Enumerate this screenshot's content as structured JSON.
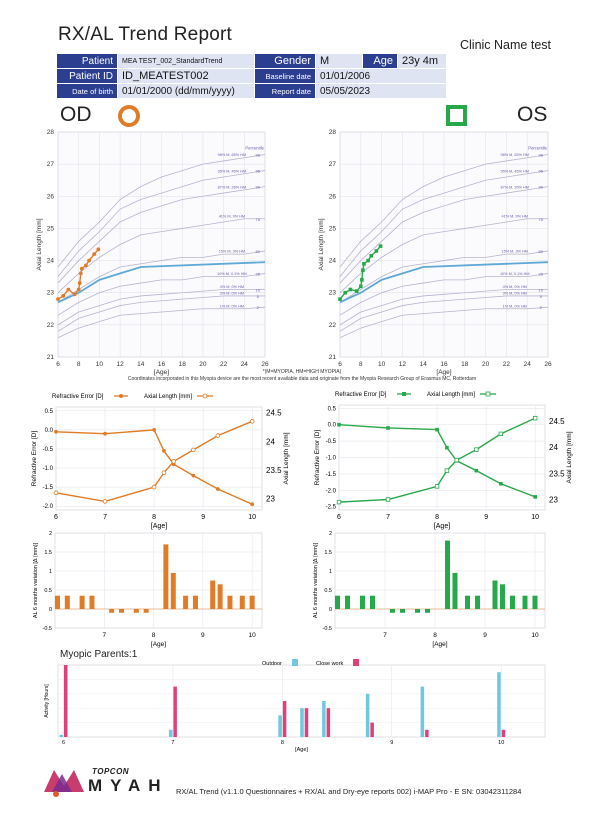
{
  "report": {
    "title": "RX/AL Trend Report",
    "clinic_name": "Clinic Name test",
    "patient_label": "Patient",
    "patient_value": "MEA TEST_002_StandardTrend",
    "gender_label": "Gender",
    "gender_value": "M",
    "age_label": "Age",
    "age_value": "23y 4m",
    "patient_id_label": "Patient ID",
    "patient_id_value": "ID_MEATEST002",
    "baseline_label": "Baseline date",
    "baseline_value": "01/01/2006",
    "dob_label": "Date of birth",
    "dob_value": "01/01/2000 (dd/mm/yyyy)",
    "report_date_label": "Report date",
    "report_date_value": "05/05/2023",
    "od_label": "OD",
    "os_label": "OS",
    "colors": {
      "od": "#e07b27",
      "os": "#27a84a",
      "header": "#2b3e8f",
      "outdoor": "#6fc8dc",
      "closework": "#e0407a"
    }
  },
  "notes": {
    "line1": "*(M=MYOPIA, HM=HIGH MYOPIA)",
    "line2": "Coordinates incorporated in this Myopia device are the most recent available data and originate from the Myopia Research Group of Erasmus MC, Rotterdam"
  },
  "chart_data": [
    {
      "id": "od_growth",
      "type": "line",
      "xlabel": "[Age]",
      "ylabel": "Axial Length [mm]",
      "xlim": [
        6,
        26
      ],
      "ylim": [
        21,
        28
      ],
      "xticks": [
        "6",
        "8",
        "10",
        "12",
        "14",
        "16",
        "18",
        "20",
        "22",
        "24",
        "26"
      ],
      "yticks": [
        "21",
        "22",
        "23",
        "24",
        "25",
        "26",
        "27",
        "28"
      ],
      "percentile_header": "Percentile",
      "percentiles": [
        {
          "label": "98",
          "tag": "98% M, 65% HM",
          "y": [
            23.8,
            24.6,
            25.2,
            25.9,
            26.3,
            26.6,
            26.8,
            27.0,
            27.1,
            27.2,
            27.3
          ]
        },
        {
          "label": "95",
          "tag": "95% M, 45% HM",
          "y": [
            23.5,
            24.3,
            24.9,
            25.6,
            25.9,
            26.1,
            26.3,
            26.5,
            26.6,
            26.7,
            26.8
          ]
        },
        {
          "label": "90",
          "tag": "87% M, 26% HM",
          "y": [
            23.3,
            24.0,
            24.6,
            25.2,
            25.5,
            25.7,
            25.9,
            26.0,
            26.1,
            26.2,
            26.3
          ]
        },
        {
          "label": "75",
          "tag": "41% M, 9% HM",
          "y": [
            23.0,
            23.6,
            24.1,
            24.5,
            24.8,
            24.9,
            25.0,
            25.1,
            25.2,
            25.3,
            25.3
          ]
        },
        {
          "label": "50",
          "tag": "15% M, 3% HM",
          "y": [
            22.7,
            23.1,
            23.5,
            23.8,
            23.9,
            24.0,
            24.1,
            24.1,
            24.2,
            24.2,
            24.3
          ]
        },
        {
          "label": "25",
          "tag": "10% M, 0.1% HM",
          "y": [
            22.3,
            22.7,
            23.0,
            23.2,
            23.3,
            23.4,
            23.4,
            23.5,
            23.5,
            23.5,
            23.6
          ]
        },
        {
          "label": "10",
          "tag": "4% M, 0% HM",
          "y": [
            22.0,
            22.4,
            22.6,
            22.8,
            22.9,
            22.95,
            23.0,
            23.05,
            23.1,
            23.1,
            23.1
          ]
        },
        {
          "label": "5",
          "tag": "3% M, 0% HM",
          "y": [
            21.8,
            22.2,
            22.4,
            22.6,
            22.7,
            22.75,
            22.8,
            22.85,
            22.9,
            22.9,
            22.9
          ]
        },
        {
          "label": "2",
          "tag": "1% M, 0% HM",
          "y": [
            21.6,
            21.9,
            22.1,
            22.3,
            22.35,
            22.4,
            22.45,
            22.5,
            22.5,
            22.5,
            22.55
          ]
        }
      ],
      "reference": {
        "x": [
          6,
          8,
          10,
          14,
          26
        ],
        "y": [
          22.7,
          23.0,
          23.4,
          23.8,
          23.95
        ]
      },
      "patient": {
        "x": [
          6.0,
          6.5,
          7.0,
          7.6,
          8.0,
          8.1,
          8.2,
          8.3,
          8.7,
          9.0,
          9.5,
          9.9
        ],
        "y": [
          22.8,
          22.9,
          23.1,
          22.95,
          23.1,
          23.3,
          23.6,
          23.75,
          23.85,
          24.0,
          24.2,
          24.35
        ]
      }
    },
    {
      "id": "os_growth",
      "type": "line",
      "xlabel": "[Age]",
      "ylabel": "Axial Length [mm]",
      "xlim": [
        6,
        26
      ],
      "ylim": [
        21,
        28
      ],
      "xticks": [
        "6",
        "8",
        "10",
        "12",
        "14",
        "16",
        "18",
        "20",
        "22",
        "24",
        "26"
      ],
      "yticks": [
        "21",
        "22",
        "23",
        "24",
        "25",
        "26",
        "27",
        "28"
      ],
      "percentile_header": "Percentile",
      "percentiles": [
        {
          "label": "98",
          "tag": "98% M, 65% HM",
          "y": [
            23.8,
            24.6,
            25.2,
            25.9,
            26.3,
            26.6,
            26.8,
            27.0,
            27.1,
            27.2,
            27.3
          ]
        },
        {
          "label": "95",
          "tag": "95% M, 45% HM",
          "y": [
            23.5,
            24.3,
            24.9,
            25.6,
            25.9,
            26.1,
            26.3,
            26.5,
            26.6,
            26.7,
            26.8
          ]
        },
        {
          "label": "90",
          "tag": "87% M, 26% HM",
          "y": [
            23.3,
            24.0,
            24.6,
            25.2,
            25.5,
            25.7,
            25.9,
            26.0,
            26.1,
            26.2,
            26.3
          ]
        },
        {
          "label": "75",
          "tag": "41% M, 9% HM",
          "y": [
            23.0,
            23.6,
            24.1,
            24.5,
            24.8,
            24.9,
            25.0,
            25.1,
            25.2,
            25.3,
            25.3
          ]
        },
        {
          "label": "50",
          "tag": "15% M, 3% HM",
          "y": [
            22.7,
            23.1,
            23.5,
            23.8,
            23.9,
            24.0,
            24.1,
            24.1,
            24.2,
            24.2,
            24.3
          ]
        },
        {
          "label": "25",
          "tag": "10% M, 0.1% HM",
          "y": [
            22.3,
            22.7,
            23.0,
            23.2,
            23.3,
            23.4,
            23.4,
            23.5,
            23.5,
            23.5,
            23.6
          ]
        },
        {
          "label": "10",
          "tag": "4% M, 0% HM",
          "y": [
            22.0,
            22.4,
            22.6,
            22.8,
            22.9,
            22.95,
            23.0,
            23.05,
            23.1,
            23.1,
            23.1
          ]
        },
        {
          "label": "5",
          "tag": "3% M, 0% HM",
          "y": [
            21.8,
            22.2,
            22.4,
            22.6,
            22.7,
            22.75,
            22.8,
            22.85,
            22.9,
            22.9,
            22.9
          ]
        },
        {
          "label": "2",
          "tag": "1% M, 0% HM",
          "y": [
            21.6,
            21.9,
            22.1,
            22.3,
            22.35,
            22.4,
            22.45,
            22.5,
            22.5,
            22.5,
            22.55
          ]
        }
      ],
      "reference": {
        "x": [
          6,
          8,
          10,
          14,
          26
        ],
        "y": [
          22.7,
          23.0,
          23.4,
          23.8,
          23.95
        ]
      },
      "patient": {
        "x": [
          6.0,
          6.5,
          7.0,
          7.6,
          8.0,
          8.1,
          8.2,
          8.3,
          8.7,
          9.0,
          9.5,
          9.9
        ],
        "y": [
          22.8,
          23.0,
          23.1,
          23.05,
          23.2,
          23.4,
          23.7,
          23.9,
          24.0,
          24.15,
          24.3,
          24.45
        ]
      }
    },
    {
      "id": "od_rx_al",
      "type": "line",
      "xlabel": "[Age]",
      "ylabel": "Refractive Error [D]",
      "y2label": "Axial Length [mm]",
      "legend": [
        "Refractive Error [D]",
        "Axial Length [mm]"
      ],
      "xlim": [
        6,
        10.2
      ],
      "ylim": [
        -2.1,
        0.6
      ],
      "y2lim": [
        22.8,
        24.6
      ],
      "xticks": [
        "6",
        "7",
        "8",
        "9",
        "10"
      ],
      "yticks": [
        "-2.0",
        "-1.5",
        "-1.0",
        "-0.5",
        "0.0",
        "0.5"
      ],
      "y2ticks": [
        "23",
        "23.5",
        "24",
        "24.5"
      ],
      "series": [
        {
          "name": "Refractive Error [D]",
          "x": [
            6.0,
            7.0,
            8.0,
            8.2,
            8.4,
            8.8,
            9.3,
            10.0
          ],
          "y": [
            -0.05,
            -0.1,
            0.0,
            -0.55,
            -0.9,
            -1.2,
            -1.55,
            -1.95
          ]
        },
        {
          "name": "Axial Length [mm]",
          "x": [
            6.0,
            7.0,
            8.0,
            8.2,
            8.4,
            8.8,
            9.3,
            10.0
          ],
          "y": [
            23.1,
            22.95,
            23.2,
            23.45,
            23.65,
            23.85,
            24.1,
            24.35
          ]
        }
      ]
    },
    {
      "id": "os_rx_al",
      "type": "line",
      "xlabel": "[Age]",
      "ylabel": "Refractive Error [D]",
      "y2label": "Axial Length [mm]",
      "legend": [
        "Refractive Error [D]",
        "Axial Length [mm]"
      ],
      "xlim": [
        6,
        10.2
      ],
      "ylim": [
        -2.6,
        0.6
      ],
      "y2lim": [
        22.8,
        24.8
      ],
      "xticks": [
        "6",
        "7",
        "8",
        "9",
        "10"
      ],
      "yticks": [
        "-2.5",
        "-2.0",
        "-1.5",
        "-1.0",
        "-0.5",
        "0.0",
        "0.5"
      ],
      "y2ticks": [
        "23",
        "23.5",
        "24",
        "24.5"
      ],
      "series": [
        {
          "name": "Refractive Error [D]",
          "x": [
            6.0,
            7.0,
            8.0,
            8.2,
            8.4,
            8.8,
            9.3,
            10.0
          ],
          "y": [
            0.0,
            -0.1,
            -0.15,
            -0.7,
            -1.1,
            -1.4,
            -1.8,
            -2.2
          ]
        },
        {
          "name": "Axial Length [mm]",
          "x": [
            6.0,
            7.0,
            8.0,
            8.2,
            8.4,
            8.8,
            9.3,
            10.0
          ],
          "y": [
            22.95,
            23.0,
            23.25,
            23.55,
            23.75,
            23.95,
            24.25,
            24.55
          ]
        }
      ]
    },
    {
      "id": "od_variation",
      "type": "bar",
      "xlabel": "[Age]",
      "ylabel": "AL 6 months variation [Δ (mm)]",
      "xlim": [
        6,
        10.2
      ],
      "ylim": [
        -0.5,
        2.0
      ],
      "xticks": [
        "7",
        "8",
        "9",
        "10"
      ],
      "yticks": [
        "-0.5",
        "0",
        "0.5",
        "1",
        "1.5",
        "2"
      ],
      "x": [
        6.05,
        6.25,
        6.55,
        6.75,
        7.15,
        7.35,
        7.65,
        7.85,
        8.25,
        8.4,
        8.65,
        8.85,
        9.2,
        9.35,
        9.55,
        9.8,
        10.0
      ],
      "values": [
        0.35,
        0.35,
        0.35,
        0.35,
        -0.1,
        -0.1,
        -0.1,
        -0.1,
        1.7,
        0.95,
        0.35,
        0.35,
        0.75,
        0.65,
        0.35,
        0.35,
        0.35
      ]
    },
    {
      "id": "os_variation",
      "type": "bar",
      "xlabel": "[Age]",
      "ylabel": "AL 6 months variation [Δ (mm)]",
      "xlim": [
        6,
        10.2
      ],
      "ylim": [
        -0.5,
        2.0
      ],
      "xticks": [
        "7",
        "8",
        "9",
        "10"
      ],
      "yticks": [
        "-0.5",
        "0",
        "0.5",
        "1",
        "1.5",
        "2"
      ],
      "x": [
        6.05,
        6.25,
        6.55,
        6.75,
        7.15,
        7.35,
        7.65,
        7.85,
        8.25,
        8.4,
        8.65,
        8.85,
        9.2,
        9.35,
        9.55,
        9.8,
        10.0
      ],
      "values": [
        0.35,
        0.35,
        0.35,
        0.35,
        -0.1,
        -0.1,
        -0.1,
        -0.1,
        1.8,
        0.95,
        0.35,
        0.35,
        0.75,
        0.65,
        0.35,
        0.35,
        0.35
      ]
    },
    {
      "id": "activity",
      "type": "bar",
      "title": "Myopic Parents:1",
      "xlabel": "[Age]",
      "ylabel": "Activity [Hours]",
      "legend": [
        "Outdoor",
        "Close work"
      ],
      "xlim": [
        5.95,
        10.4
      ],
      "ylim": [
        0,
        10
      ],
      "xticks": [
        "6",
        "7",
        "8",
        "9",
        "10"
      ],
      "series": [
        {
          "name": "Outdoor",
          "x": [
            6.0,
            7.0,
            8.0,
            8.2,
            8.4,
            8.8,
            9.3,
            10.0
          ],
          "values": [
            0.3,
            1.0,
            3.0,
            4.0,
            5.0,
            6.0,
            7.0,
            9.0
          ]
        },
        {
          "name": "Close work",
          "x": [
            6.0,
            7.0,
            8.0,
            8.2,
            8.4,
            8.8,
            9.3,
            10.0
          ],
          "values": [
            10.0,
            7.0,
            5.0,
            4.0,
            4.0,
            2.0,
            1.0,
            1.0
          ]
        }
      ]
    }
  ],
  "footer": {
    "brand_topcon": "TOPCON",
    "brand_myah": "MYAH",
    "text": "RX/AL Trend (v1.1.0 Questionnaires + RX/AL and Dry-eye reports 002) i-MAP Pro - E SN: 03042311284"
  }
}
